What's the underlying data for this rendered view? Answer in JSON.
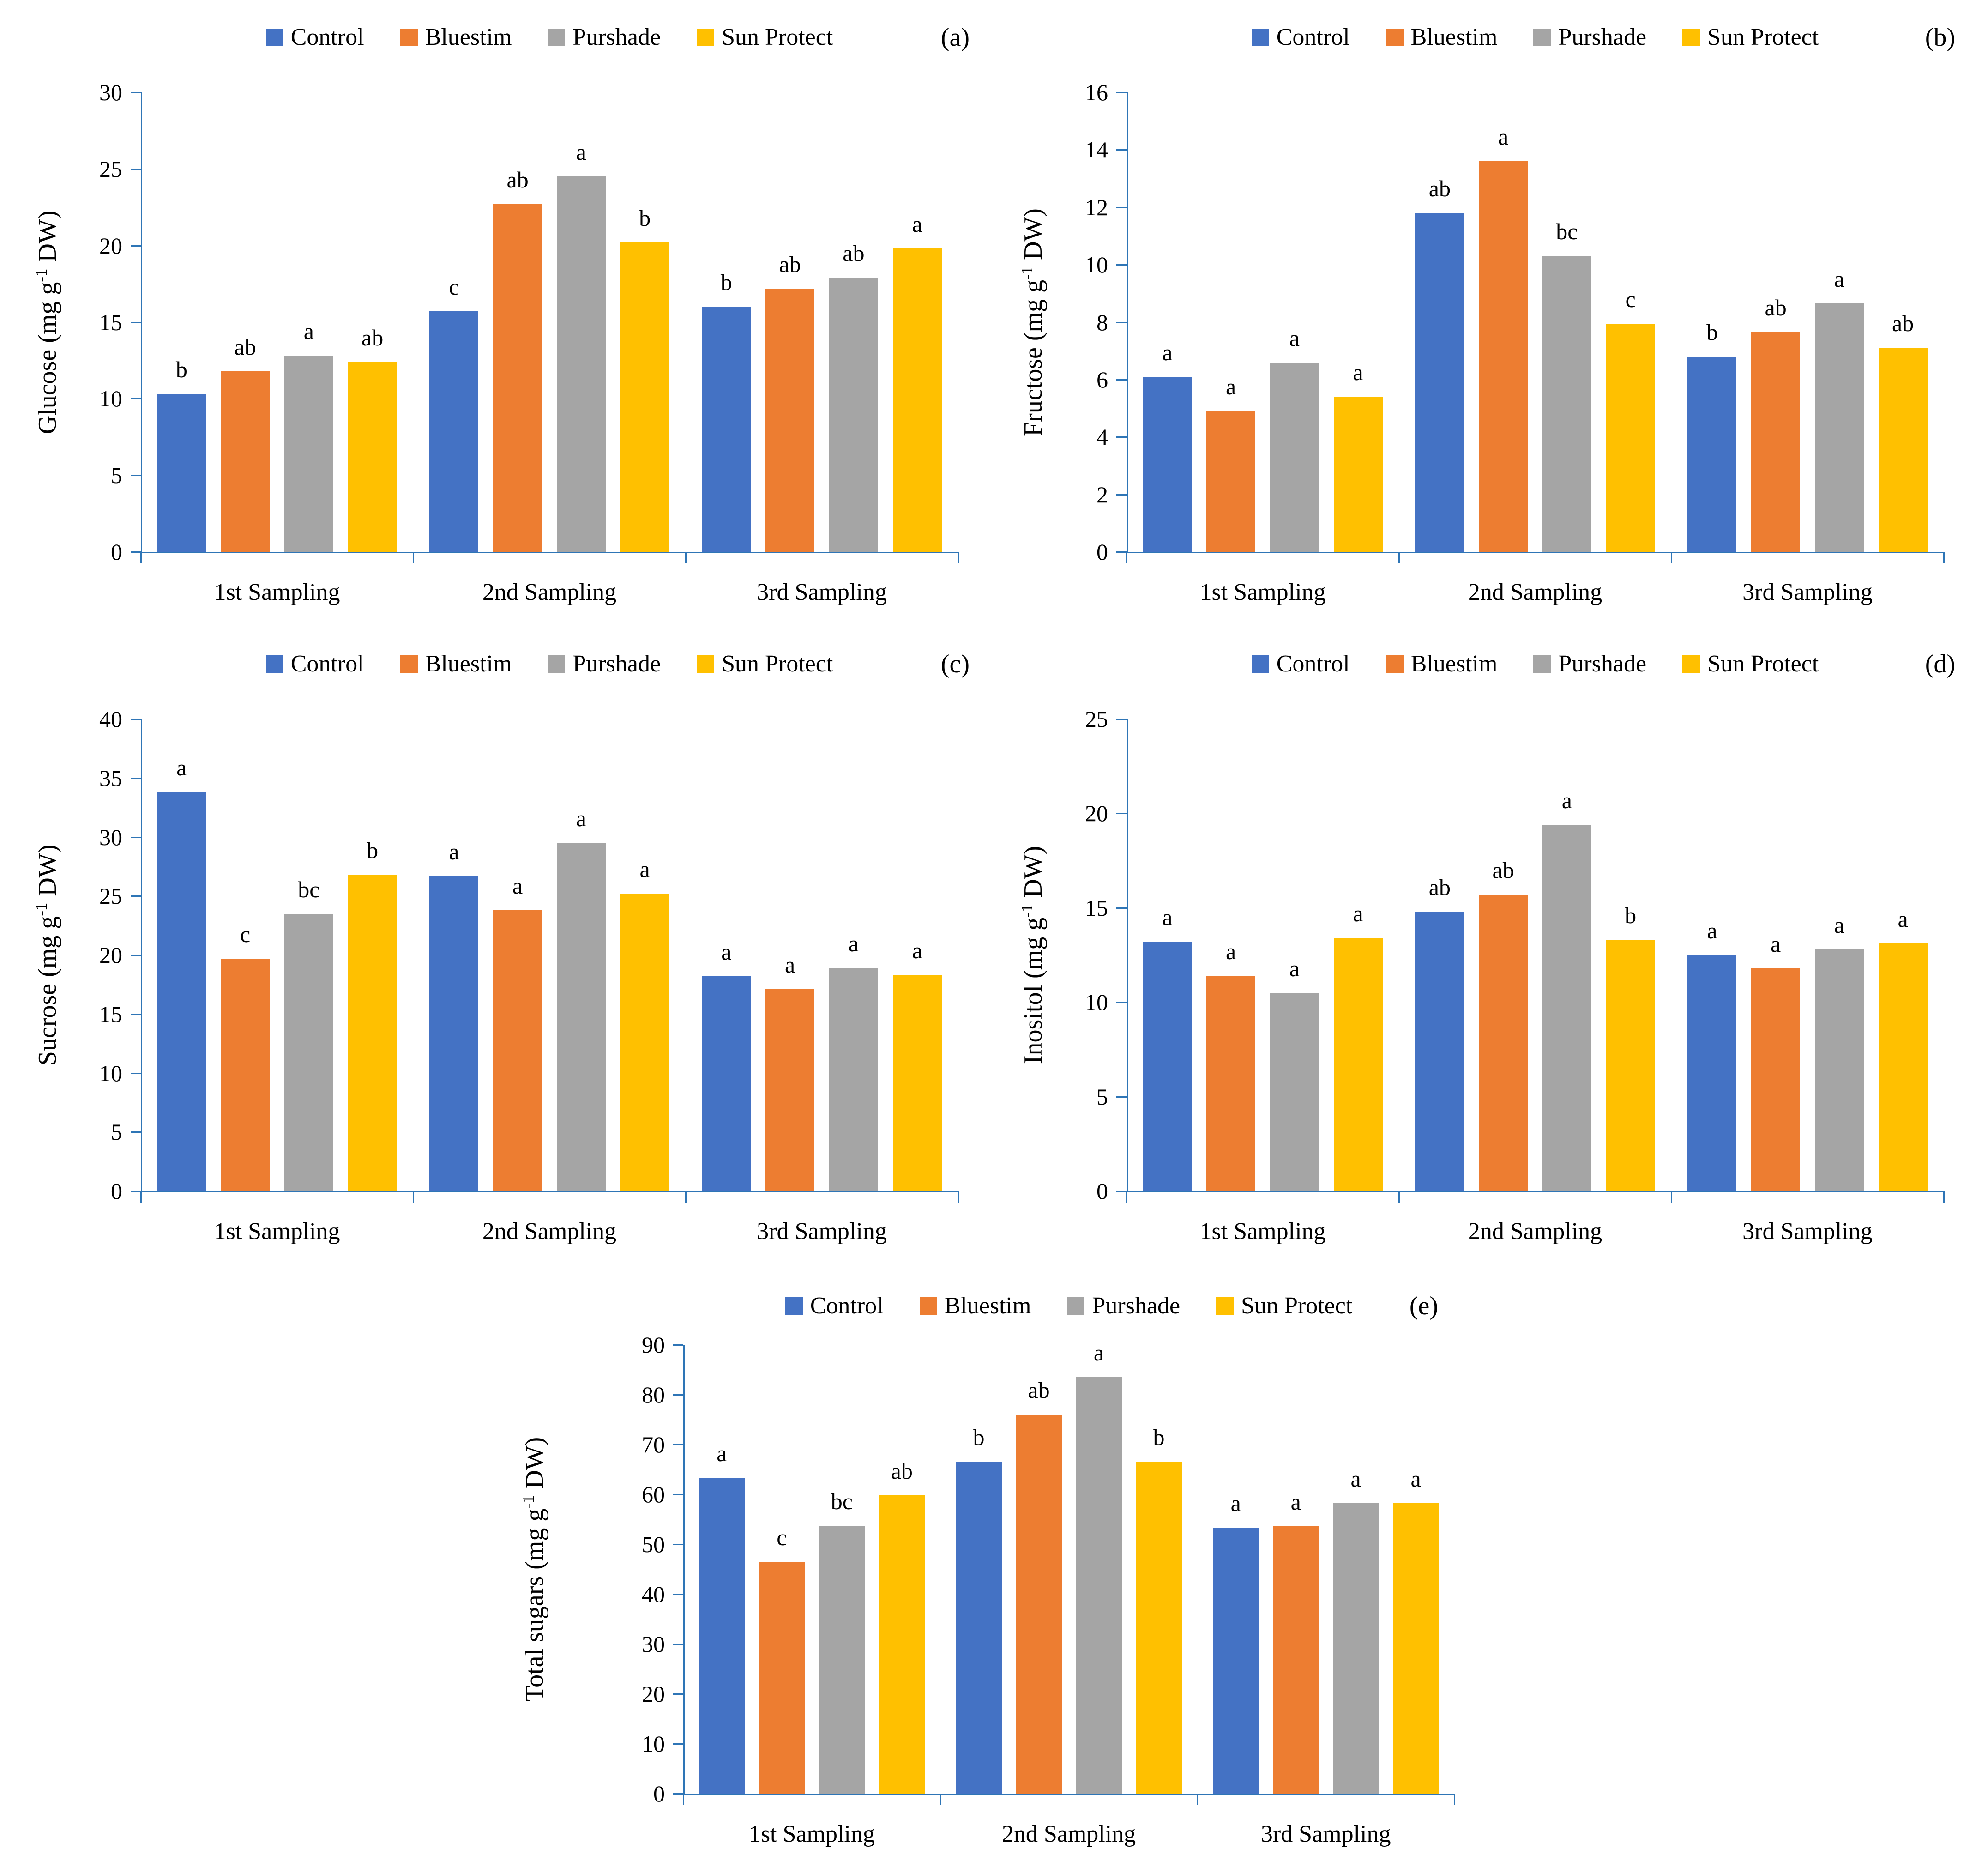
{
  "figure": {
    "background": "#FFFFFF",
    "axis_color": "#2E75B6",
    "text_color": "#000000"
  },
  "legend": {
    "position": "top",
    "items": [
      {
        "label": "Control",
        "color": "#4472C4"
      },
      {
        "label": "Bluestim",
        "color": "#ED7D31"
      },
      {
        "label": "Purshade",
        "color": "#A5A5A5"
      },
      {
        "label": "Sun Protect",
        "color": "#FFC000"
      }
    ]
  },
  "chart_data": [
    {
      "id": "a",
      "panel_label": "(a)",
      "type": "bar",
      "title": "",
      "xlabel": "",
      "ylabel": "Glucose (mg g-1 DW)",
      "ylabel_parts": {
        "pre": "Glucose (mg g",
        "sup": "-1",
        "post": " DW)"
      },
      "ylim": [
        0,
        30
      ],
      "yticks": [
        0,
        5,
        10,
        15,
        20,
        25,
        30
      ],
      "grid": false,
      "legend_position": "top",
      "categories": [
        "1st Sampling",
        "2nd Sampling",
        "3rd Sampling"
      ],
      "series": [
        {
          "name": "Control",
          "values": [
            10.3,
            15.7,
            16.0
          ],
          "letters": [
            "b",
            "c",
            "b"
          ]
        },
        {
          "name": "Bluestim",
          "values": [
            11.8,
            22.7,
            17.2
          ],
          "letters": [
            "ab",
            "ab",
            "ab"
          ]
        },
        {
          "name": "Purshade",
          "values": [
            12.8,
            24.5,
            17.9
          ],
          "letters": [
            "a",
            "a",
            "ab"
          ]
        },
        {
          "name": "Sun Protect",
          "values": [
            12.4,
            20.2,
            19.8
          ],
          "letters": [
            "ab",
            "b",
            "a"
          ]
        }
      ]
    },
    {
      "id": "b",
      "panel_label": "(b)",
      "type": "bar",
      "title": "",
      "xlabel": "",
      "ylabel": "Fructose (mg g-1 DW)",
      "ylabel_parts": {
        "pre": "Fructose (mg g",
        "sup": "-1",
        "post": " DW)"
      },
      "ylim": [
        0,
        16
      ],
      "yticks": [
        0,
        2,
        4,
        6,
        8,
        10,
        12,
        14,
        16
      ],
      "grid": false,
      "legend_position": "top",
      "categories": [
        "1st Sampling",
        "2nd Sampling",
        "3rd Sampling"
      ],
      "series": [
        {
          "name": "Control",
          "values": [
            6.1,
            11.8,
            6.8
          ],
          "letters": [
            "a",
            "ab",
            "b"
          ]
        },
        {
          "name": "Bluestim",
          "values": [
            4.9,
            13.6,
            7.65
          ],
          "letters": [
            "a",
            "a",
            "ab"
          ]
        },
        {
          "name": "Purshade",
          "values": [
            6.6,
            10.3,
            8.65
          ],
          "letters": [
            "a",
            "bc",
            "a"
          ]
        },
        {
          "name": "Sun Protect",
          "values": [
            5.4,
            7.95,
            7.1
          ],
          "letters": [
            "a",
            "c",
            "ab"
          ]
        }
      ]
    },
    {
      "id": "c",
      "panel_label": "(c)",
      "type": "bar",
      "title": "",
      "xlabel": "",
      "ylabel": "Sucrose (mg g-1 DW)",
      "ylabel_parts": {
        "pre": "Sucrose (mg g",
        "sup": "-1",
        "post": " DW)"
      },
      "ylim": [
        0,
        40
      ],
      "yticks": [
        0,
        5,
        10,
        15,
        20,
        25,
        30,
        35,
        40
      ],
      "grid": false,
      "legend_position": "top",
      "categories": [
        "1st Sampling",
        "2nd Sampling",
        "3rd Sampling"
      ],
      "series": [
        {
          "name": "Control",
          "values": [
            33.8,
            26.7,
            18.2
          ],
          "letters": [
            "a",
            "a",
            "a"
          ]
        },
        {
          "name": "Bluestim",
          "values": [
            19.7,
            23.8,
            17.1
          ],
          "letters": [
            "c",
            "a",
            "a"
          ]
        },
        {
          "name": "Purshade",
          "values": [
            23.5,
            29.5,
            18.9
          ],
          "letters": [
            "bc",
            "a",
            "a"
          ]
        },
        {
          "name": "Sun Protect",
          "values": [
            26.8,
            25.2,
            18.3
          ],
          "letters": [
            "b",
            "a",
            "a"
          ]
        }
      ]
    },
    {
      "id": "d",
      "panel_label": "(d)",
      "type": "bar",
      "title": "",
      "xlabel": "",
      "ylabel": "Inositol (mg g-1 DW)",
      "ylabel_parts": {
        "pre": "Inositol (mg g",
        "sup": "-1",
        "post": " DW)"
      },
      "ylim": [
        0,
        25
      ],
      "yticks": [
        0,
        5,
        10,
        15,
        20,
        25
      ],
      "grid": false,
      "legend_position": "top",
      "categories": [
        "1st Sampling",
        "2nd Sampling",
        "3rd Sampling"
      ],
      "series": [
        {
          "name": "Control",
          "values": [
            13.2,
            14.8,
            12.5
          ],
          "letters": [
            "a",
            "ab",
            "a"
          ]
        },
        {
          "name": "Bluestim",
          "values": [
            11.4,
            15.7,
            11.8
          ],
          "letters": [
            "a",
            "ab",
            "a"
          ]
        },
        {
          "name": "Purshade",
          "values": [
            10.5,
            19.4,
            12.8
          ],
          "letters": [
            "a",
            "a",
            "a"
          ]
        },
        {
          "name": "Sun Protect",
          "values": [
            13.4,
            13.3,
            13.1
          ],
          "letters": [
            "a",
            "b",
            "a"
          ]
        }
      ]
    },
    {
      "id": "e",
      "panel_label": "(e)",
      "type": "bar",
      "title": "",
      "xlabel": "",
      "ylabel": "Total sugars (mg g-1 DW)",
      "ylabel_parts": {
        "pre": "Total sugars (mg g",
        "sup": "-1",
        "post": " DW)"
      },
      "ylim": [
        0,
        90
      ],
      "yticks": [
        0,
        10,
        20,
        30,
        40,
        50,
        60,
        70,
        80,
        90
      ],
      "grid": false,
      "legend_position": "top",
      "categories": [
        "1st Sampling",
        "2nd Sampling",
        "3rd Sampling"
      ],
      "series": [
        {
          "name": "Control",
          "values": [
            63.3,
            66.6,
            53.3
          ],
          "letters": [
            "a",
            "b",
            "a"
          ]
        },
        {
          "name": "Bluestim",
          "values": [
            46.5,
            76.0,
            53.6
          ],
          "letters": [
            "c",
            "ab",
            "a"
          ]
        },
        {
          "name": "Purshade",
          "values": [
            53.7,
            83.5,
            58.2
          ],
          "letters": [
            "bc",
            "a",
            "a"
          ]
        },
        {
          "name": "Sun Protect",
          "values": [
            59.8,
            66.6,
            58.2
          ],
          "letters": [
            "ab",
            "b",
            "a"
          ]
        }
      ]
    }
  ]
}
